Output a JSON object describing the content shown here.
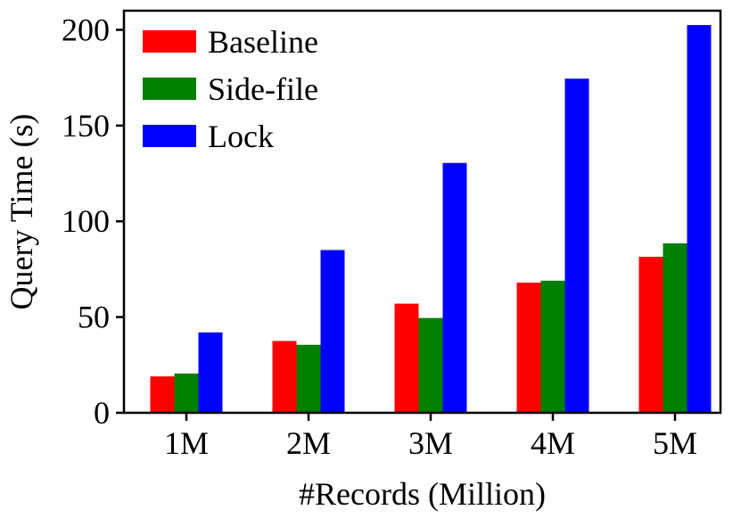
{
  "chart_data": {
    "type": "bar",
    "title": "",
    "xlabel": "#Records (Million)",
    "ylabel": "Query Time (s)",
    "categories": [
      "1M",
      "2M",
      "3M",
      "4M",
      "5M"
    ],
    "ylim": [
      0,
      210
    ],
    "yticks": [
      0,
      50,
      100,
      150,
      200
    ],
    "grid": false,
    "legend_position": "top-left",
    "series": [
      {
        "name": "Baseline",
        "color": "#ff0000",
        "values": [
          19,
          37.5,
          57,
          68,
          81.5
        ]
      },
      {
        "name": "Side-file",
        "color": "#008000",
        "values": [
          20.5,
          35.5,
          49.5,
          69,
          88.5
        ]
      },
      {
        "name": "Lock",
        "color": "#0000ff",
        "values": [
          42,
          85,
          130.5,
          174.5,
          202.5
        ]
      }
    ]
  }
}
